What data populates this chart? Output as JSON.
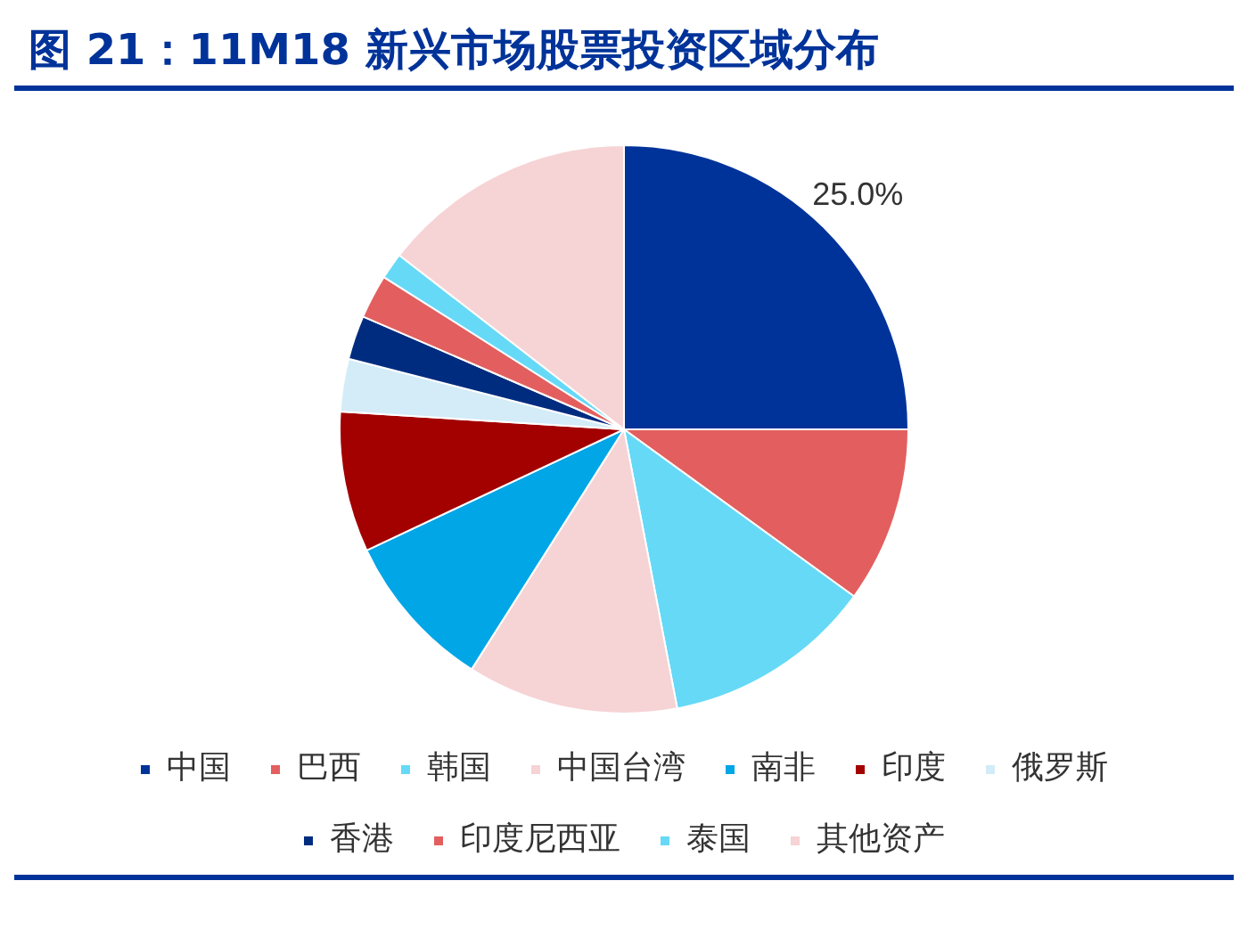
{
  "chart_data": {
    "type": "pie",
    "title": "图 21：11M18 新兴市场股票投资区域分布",
    "categories": [
      "中国",
      "巴西",
      "韩国",
      "中国台湾",
      "南非",
      "印度",
      "俄罗斯",
      "香港",
      "印度尼西亚",
      "泰国",
      "其他资产"
    ],
    "values": [
      25.0,
      10,
      12,
      12,
      9,
      8,
      3,
      2.5,
      2.5,
      1.5,
      14.5
    ],
    "colors": [
      "#003399",
      "#e35f5f",
      "#66d9f7",
      "#f6d3d5",
      "#00a6e6",
      "#a30000",
      "#d3ecf7",
      "#002c80",
      "#e35f5f",
      "#66d9f7",
      "#f6d3d5"
    ],
    "value_labels": [
      "25.0%",
      null,
      null,
      null,
      null,
      null,
      null,
      null,
      null,
      null,
      null
    ],
    "legend": "bottom"
  }
}
